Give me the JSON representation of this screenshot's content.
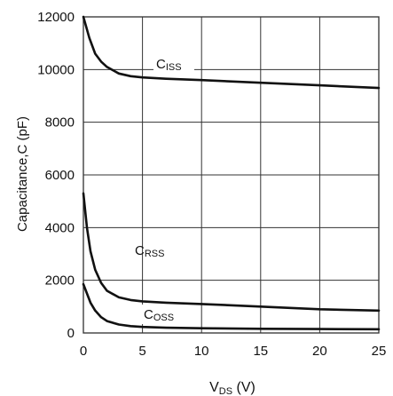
{
  "chart_data": {
    "type": "line",
    "xlabel_main": "V",
    "xlabel_sub": "DS",
    "xlabel_unit": " (V)",
    "ylabel": "Capacitance,C (pF)",
    "xlim": [
      0,
      25
    ],
    "ylim": [
      0,
      12000
    ],
    "x_ticks": [
      "0",
      "5",
      "10",
      "15",
      "20",
      "25"
    ],
    "y_ticks": [
      "0",
      "2000",
      "4000",
      "6000",
      "8000",
      "10000",
      "12000"
    ],
    "grid": true,
    "series": [
      {
        "name_main": "C",
        "name_sub": "ISS",
        "color": "#111111",
        "x": [
          0,
          0.5,
          1,
          1.5,
          2,
          3,
          4,
          5,
          7,
          10,
          15,
          20,
          25
        ],
        "y": [
          12000,
          11200,
          10600,
          10300,
          10100,
          9850,
          9750,
          9700,
          9650,
          9600,
          9500,
          9400,
          9300
        ]
      },
      {
        "name_main": "C",
        "name_sub": "RSS",
        "color": "#111111",
        "x": [
          0,
          0.3,
          0.6,
          1,
          1.5,
          2,
          3,
          4,
          5,
          7,
          10,
          15,
          20,
          25
        ],
        "y": [
          5300,
          4000,
          3100,
          2400,
          1900,
          1600,
          1350,
          1250,
          1200,
          1150,
          1100,
          1000,
          900,
          850
        ]
      },
      {
        "name_main": "C",
        "name_sub": "OSS",
        "color": "#111111",
        "x": [
          0,
          0.3,
          0.6,
          1,
          1.5,
          2,
          3,
          4,
          5,
          7,
          10,
          15,
          20,
          25
        ],
        "y": [
          1850,
          1500,
          1150,
          850,
          600,
          450,
          320,
          260,
          230,
          200,
          180,
          160,
          150,
          140
        ]
      }
    ]
  }
}
